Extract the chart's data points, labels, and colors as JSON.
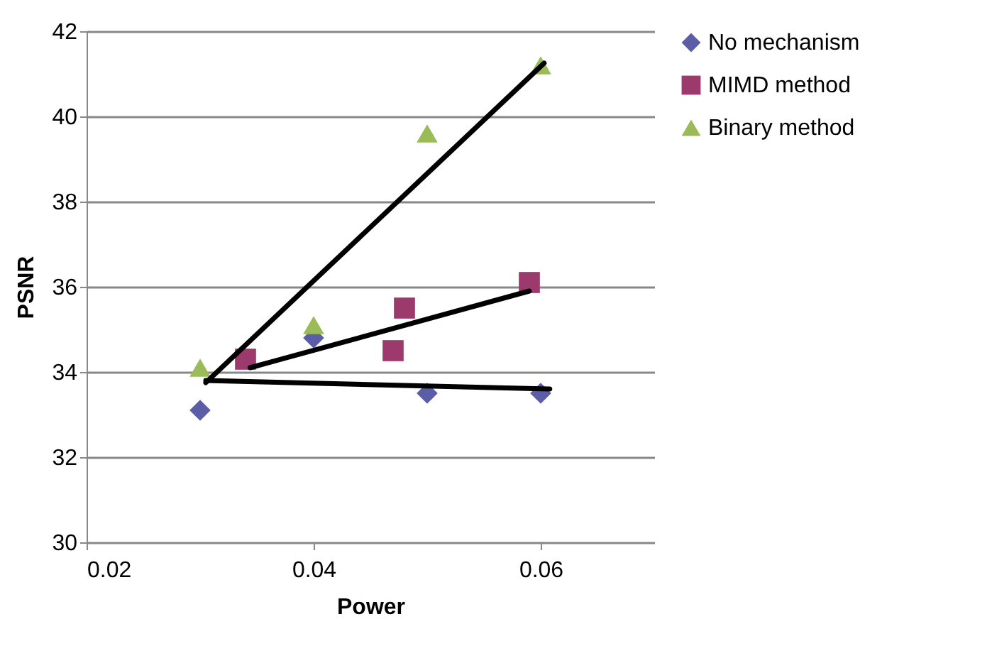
{
  "chart_data": {
    "type": "scatter",
    "xlabel": "Power",
    "ylabel": "PSNR",
    "xlim": [
      0.02,
      0.07
    ],
    "xticks": [
      0.02,
      0.04,
      0.06
    ],
    "ylim": [
      30,
      42
    ],
    "yticks": [
      30,
      32,
      34,
      36,
      38,
      40,
      42
    ],
    "grid": "y",
    "legend": "right",
    "series": [
      {
        "name": "No mechanism",
        "color": "#5b5ea6",
        "marker": "diamond",
        "x": [
          0.03,
          0.04,
          0.05,
          0.06
        ],
        "values": [
          33.1,
          34.8,
          33.5,
          33.5
        ]
      },
      {
        "name": "MIMD method",
        "color": "#9c3a6e",
        "marker": "square",
        "x": [
          0.034,
          0.047,
          0.048,
          0.059
        ],
        "values": [
          34.3,
          34.5,
          35.5,
          36.1
        ]
      },
      {
        "name": "Binary method",
        "color": "#9bbb59",
        "marker": "triangle",
        "x": [
          0.03,
          0.04,
          0.05,
          0.06
        ],
        "values": [
          34.1,
          35.1,
          39.6,
          41.2
        ]
      },
      {
        "type": "line",
        "color": "#000000",
        "x": [
          0.0305,
          0.0608
        ],
        "values": [
          33.8,
          33.6
        ]
      },
      {
        "type": "line",
        "color": "#000000",
        "x": [
          0.0344,
          0.059
        ],
        "values": [
          34.1,
          35.9
        ]
      },
      {
        "type": "line",
        "color": "#000000",
        "x": [
          0.0305,
          0.0603
        ],
        "values": [
          33.75,
          41.25
        ]
      }
    ]
  }
}
